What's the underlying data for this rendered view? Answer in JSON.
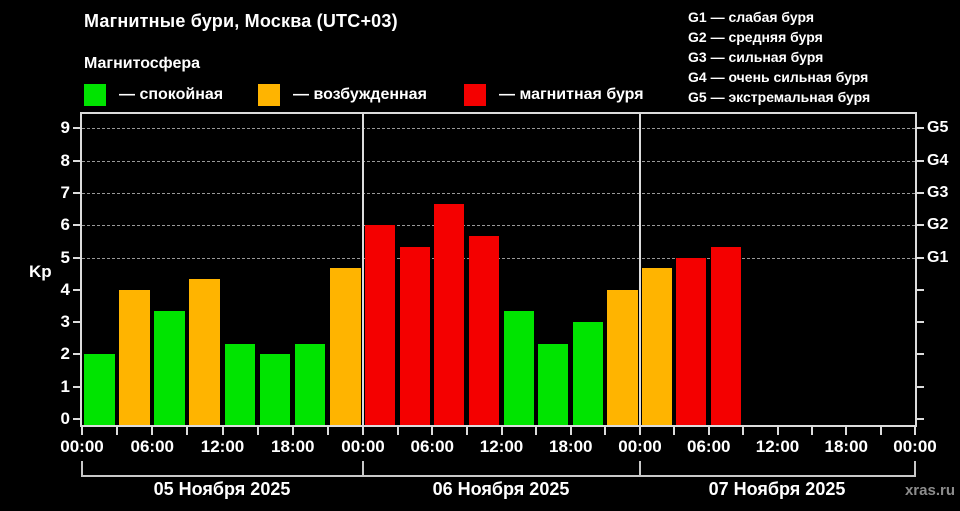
{
  "page": {
    "watermark": "xras.ru"
  },
  "header": {
    "title": "Магнитные бури, Москва (UTC+03)",
    "subtitle": "Магнитосфера"
  },
  "legend": {
    "items": [
      {
        "key": "calm",
        "label": "— спокойная"
      },
      {
        "key": "excited",
        "label": "— возбужденная"
      },
      {
        "key": "storm",
        "label": "— магнитная буря"
      }
    ]
  },
  "g_legend": {
    "lines": [
      "G1 — слабая буря",
      "G2 — средняя буря",
      "G3 — сильная буря",
      "G4 — очень сильная буря",
      "G5 — экстремальная буря"
    ]
  },
  "colors": {
    "calm": "#00e400",
    "excited": "#ffb400",
    "storm": "#f40000",
    "grid": "#999999",
    "axis": "#dcdcdc",
    "text": "#ffffff",
    "muted": "#8c8c8c",
    "background": "#000000"
  },
  "chart_data": {
    "type": "bar",
    "title": "Магнитные бури, Москва (UTC+03)",
    "ylabel": "Kp",
    "ylim": [
      0,
      9
    ],
    "y_ticks": [
      0,
      1,
      2,
      3,
      4,
      5,
      6,
      7,
      8,
      9
    ],
    "gridlines_at": [
      5,
      6,
      7,
      8,
      9
    ],
    "grid": "dashed, only at storm levels 5-9",
    "legend_position": "top",
    "right_axis": [
      {
        "value": 5,
        "label": "G1"
      },
      {
        "value": 6,
        "label": "G2"
      },
      {
        "value": 7,
        "label": "G3"
      },
      {
        "value": 8,
        "label": "G4"
      },
      {
        "value": 9,
        "label": "G5"
      }
    ],
    "x_tick_labels": [
      "00:00",
      "06:00",
      "12:00",
      "18:00",
      "00:00",
      "06:00",
      "12:00",
      "18:00",
      "00:00",
      "06:00",
      "12:00",
      "18:00",
      "00:00"
    ],
    "bar_interval_hours": 3,
    "days": [
      {
        "date": "05 Ноября 2025",
        "bars": [
          {
            "time": "00:00",
            "value": 2.0,
            "status": "calm"
          },
          {
            "time": "03:00",
            "value": 4.0,
            "status": "excited"
          },
          {
            "time": "06:00",
            "value": 3.33,
            "status": "calm"
          },
          {
            "time": "09:00",
            "value": 4.33,
            "status": "excited"
          },
          {
            "time": "12:00",
            "value": 2.33,
            "status": "calm"
          },
          {
            "time": "15:00",
            "value": 2.0,
            "status": "calm"
          },
          {
            "time": "18:00",
            "value": 2.33,
            "status": "calm"
          },
          {
            "time": "21:00",
            "value": 4.67,
            "status": "excited"
          }
        ]
      },
      {
        "date": "06 Ноября 2025",
        "bars": [
          {
            "time": "00:00",
            "value": 6.0,
            "status": "storm"
          },
          {
            "time": "03:00",
            "value": 5.33,
            "status": "storm"
          },
          {
            "time": "06:00",
            "value": 6.67,
            "status": "storm"
          },
          {
            "time": "09:00",
            "value": 5.67,
            "status": "storm"
          },
          {
            "time": "12:00",
            "value": 3.33,
            "status": "calm"
          },
          {
            "time": "15:00",
            "value": 2.33,
            "status": "calm"
          },
          {
            "time": "18:00",
            "value": 3.0,
            "status": "calm"
          },
          {
            "time": "21:00",
            "value": 4.0,
            "status": "excited"
          }
        ]
      },
      {
        "date": "07 Ноября 2025",
        "bars": [
          {
            "time": "00:00",
            "value": 4.67,
            "status": "excited"
          },
          {
            "time": "03:00",
            "value": 5.0,
            "status": "storm"
          },
          {
            "time": "06:00",
            "value": 5.33,
            "status": "storm"
          }
        ]
      }
    ]
  }
}
